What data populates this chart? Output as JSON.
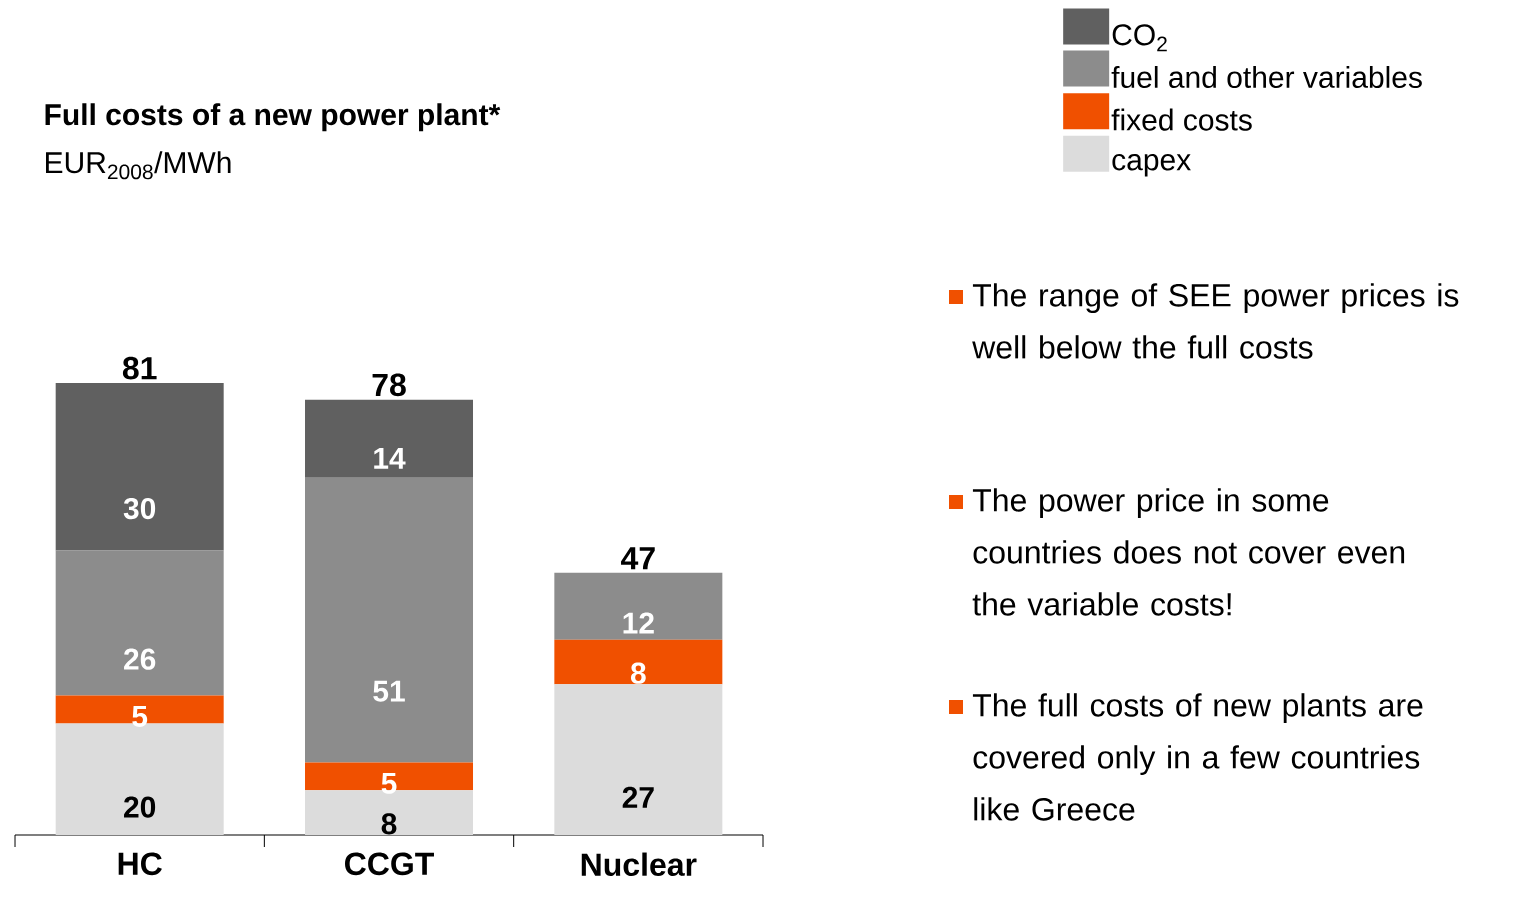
{
  "chart_data": {
    "type": "bar",
    "stacked": true,
    "title": "Full costs of a new power plant*",
    "subtitle": "EUR$_{2008}$/MWh",
    "categories": [
      "HC",
      "CCGT",
      "Nuclear"
    ],
    "series": [
      {
        "name": "capex",
        "color": "#dcdcdc",
        "values": [
          20,
          8,
          27
        ]
      },
      {
        "name": "fixed costs",
        "color": "#f05000",
        "values": [
          5,
          5,
          8
        ]
      },
      {
        "name": "fuel and other variables",
        "color": "#8c8c8c",
        "values": [
          26,
          51,
          12
        ]
      },
      {
        "name": "CO$_{2}$",
        "color": "#606060",
        "values": [
          30,
          14,
          null
        ]
      }
    ],
    "data_labels": true,
    "totals": [
      "81",
      "78",
      "47"
    ],
    "legend": "top right",
    "annotations": [
      "The range of SEE power prices is well below the full costs",
      "The power price in some countries does not cover even the variable costs!",
      "The full costs of new plants are covered only in a few countries like Greece"
    ]
  }
}
